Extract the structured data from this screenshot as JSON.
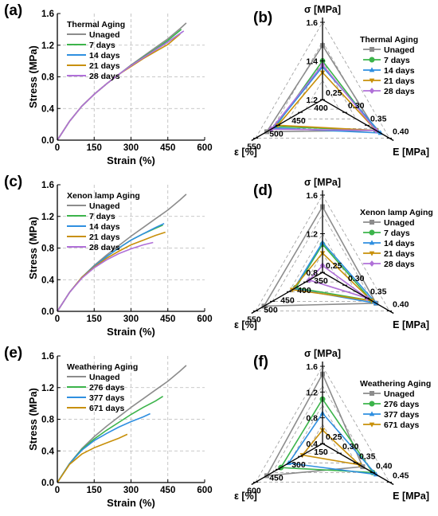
{
  "colors": {
    "Unaged": "#8c8c8c",
    "7 days": "#3cb44b",
    "14 days": "#2f8fe0",
    "21 days": "#c8900a",
    "28 days": "#b070d8",
    "276 days": "#3cb44b",
    "377 days": "#2f8fe0",
    "671 days": "#c8900a"
  },
  "chart_data": [
    {
      "panel": "(a)",
      "type": "line",
      "xlabel": "Strain (%)",
      "ylabel": "Stress (MPa)",
      "xlim": [
        0,
        600
      ],
      "ylim": [
        0,
        1.6
      ],
      "xticks": [
        0,
        150,
        300,
        450,
        600
      ],
      "yticks": [
        0.0,
        0.4,
        0.8,
        1.2,
        1.6
      ],
      "xtick_labels": [
        "0",
        "150",
        "300",
        "450",
        "600"
      ],
      "ytick_labels": [
        "0.0",
        "0.4",
        "0.8",
        "1.2",
        "1.6"
      ],
      "grid": true,
      "legend_title": "Thermal Aging",
      "legend_position": "top-left",
      "series": [
        {
          "name": "Unaged",
          "x": [
            0,
            50,
            100,
            150,
            200,
            250,
            300,
            350,
            400,
            450,
            500,
            525
          ],
          "y": [
            0,
            0.24,
            0.43,
            0.58,
            0.71,
            0.83,
            0.95,
            1.06,
            1.17,
            1.28,
            1.41,
            1.48
          ]
        },
        {
          "name": "7 days",
          "x": [
            0,
            50,
            100,
            150,
            200,
            250,
            300,
            350,
            400,
            450,
            505
          ],
          "y": [
            0,
            0.24,
            0.43,
            0.58,
            0.71,
            0.83,
            0.94,
            1.05,
            1.15,
            1.26,
            1.4
          ]
        },
        {
          "name": "14 days",
          "x": [
            0,
            50,
            100,
            150,
            200,
            250,
            300,
            350,
            400,
            450,
            510
          ],
          "y": [
            0,
            0.24,
            0.43,
            0.58,
            0.71,
            0.83,
            0.94,
            1.04,
            1.14,
            1.24,
            1.37
          ]
        },
        {
          "name": "21 days",
          "x": [
            0,
            50,
            100,
            150,
            200,
            250,
            300,
            350,
            400,
            450,
            500
          ],
          "y": [
            0,
            0.24,
            0.43,
            0.58,
            0.71,
            0.83,
            0.93,
            1.03,
            1.12,
            1.21,
            1.34
          ]
        },
        {
          "name": "28 days",
          "x": [
            0,
            50,
            100,
            150,
            200,
            250,
            300,
            350,
            400,
            450,
            515
          ],
          "y": [
            0,
            0.24,
            0.43,
            0.58,
            0.71,
            0.83,
            0.94,
            1.04,
            1.14,
            1.24,
            1.38
          ]
        }
      ]
    },
    {
      "panel": "(b)",
      "type": "radar",
      "axis_labels": {
        "top": "σ [MPa]",
        "right": "E [MPa]",
        "left": "ε [%]"
      },
      "axis_ranges": {
        "top": [
          1.2,
          1.6
        ],
        "right": [
          0.25,
          0.4
        ],
        "left": [
          400,
          550
        ]
      },
      "tick_labels": {
        "top": [
          "1.2",
          "1.4",
          "1.6"
        ],
        "right": [
          "0.25",
          "0.30",
          "0.35",
          "0.40"
        ],
        "left": [
          "400",
          "450",
          "500",
          "550"
        ]
      },
      "legend_title": "Thermal Aging",
      "legend_position": "top-right",
      "series": [
        {
          "name": "Unaged",
          "top": 1.48,
          "right": 0.37,
          "left": 525
        },
        {
          "name": "7 days",
          "top": 1.4,
          "right": 0.37,
          "left": 505
        },
        {
          "name": "14 days",
          "top": 1.37,
          "right": 0.38,
          "left": 510
        },
        {
          "name": "21 days",
          "top": 1.34,
          "right": 0.37,
          "left": 500
        },
        {
          "name": "28 days",
          "top": 1.38,
          "right": 0.37,
          "left": 515
        }
      ]
    },
    {
      "panel": "(c)",
      "type": "line",
      "xlabel": "Strain (%)",
      "ylabel": "Stress (MPa)",
      "xlim": [
        0,
        600
      ],
      "ylim": [
        0,
        1.6
      ],
      "xticks": [
        0,
        150,
        300,
        450,
        600
      ],
      "yticks": [
        0.0,
        0.4,
        0.8,
        1.2,
        1.6
      ],
      "xtick_labels": [
        "0",
        "150",
        "300",
        "450",
        "600"
      ],
      "ytick_labels": [
        "0.0",
        "0.4",
        "0.8",
        "1.2",
        "1.6"
      ],
      "grid": true,
      "legend_title": "Xenon lamp Aging",
      "legend_position": "top-left",
      "series": [
        {
          "name": "Unaged",
          "x": [
            0,
            50,
            100,
            150,
            200,
            250,
            300,
            350,
            400,
            450,
            500,
            525
          ],
          "y": [
            0,
            0.24,
            0.43,
            0.58,
            0.71,
            0.83,
            0.95,
            1.06,
            1.17,
            1.28,
            1.41,
            1.48
          ]
        },
        {
          "name": "7 days",
          "x": [
            0,
            50,
            100,
            150,
            200,
            250,
            300,
            350,
            400,
            430
          ],
          "y": [
            0,
            0.24,
            0.43,
            0.57,
            0.69,
            0.8,
            0.9,
            0.98,
            1.05,
            1.09
          ]
        },
        {
          "name": "14 days",
          "x": [
            0,
            50,
            100,
            150,
            200,
            250,
            300,
            350,
            400,
            435
          ],
          "y": [
            0,
            0.24,
            0.43,
            0.57,
            0.69,
            0.8,
            0.9,
            0.98,
            1.06,
            1.11
          ]
        },
        {
          "name": "21 days",
          "x": [
            0,
            50,
            100,
            150,
            200,
            250,
            300,
            350,
            400,
            440
          ],
          "y": [
            0,
            0.24,
            0.43,
            0.56,
            0.67,
            0.76,
            0.84,
            0.9,
            0.96,
            1.0
          ]
        },
        {
          "name": "28 days",
          "x": [
            0,
            50,
            100,
            150,
            200,
            250,
            300,
            350,
            390
          ],
          "y": [
            0,
            0.24,
            0.42,
            0.55,
            0.65,
            0.73,
            0.79,
            0.84,
            0.87
          ]
        }
      ]
    },
    {
      "panel": "(d)",
      "type": "radar",
      "axis_labels": {
        "top": "σ [MPa]",
        "right": "E [MPa]",
        "left": "ε [%]"
      },
      "axis_ranges": {
        "top": [
          0.8,
          1.6
        ],
        "right": [
          0.25,
          0.4
        ],
        "left": [
          350,
          550
        ]
      },
      "tick_labels": {
        "top": [
          "0.8",
          "1.2",
          "1.6"
        ],
        "right": [
          "0.25",
          "0.30",
          "0.35",
          "0.40"
        ],
        "left": [
          "350",
          "400",
          "450",
          "500",
          "550"
        ]
      },
      "legend_title": "Xenon lamp Aging",
      "legend_position": "top-right",
      "series": [
        {
          "name": "Unaged",
          "top": 1.48,
          "right": 0.37,
          "left": 525
        },
        {
          "name": "7 days",
          "top": 1.09,
          "right": 0.36,
          "left": 430
        },
        {
          "name": "14 days",
          "top": 1.11,
          "right": 0.37,
          "left": 435
        },
        {
          "name": "21 days",
          "top": 1.0,
          "right": 0.36,
          "left": 440
        },
        {
          "name": "28 days",
          "top": 0.87,
          "right": 0.35,
          "left": 390
        }
      ]
    },
    {
      "panel": "(e)",
      "type": "line",
      "xlabel": "Strain (%)",
      "ylabel": "Stress (MPa)",
      "xlim": [
        0,
        600
      ],
      "ylim": [
        0,
        1.6
      ],
      "xticks": [
        0,
        150,
        300,
        450,
        600
      ],
      "yticks": [
        0.0,
        0.4,
        0.8,
        1.2,
        1.6
      ],
      "xtick_labels": [
        "0",
        "150",
        "300",
        "450",
        "600"
      ],
      "ytick_labels": [
        "0.0",
        "0.4",
        "0.8",
        "1.2",
        "1.6"
      ],
      "grid": true,
      "legend_title": "Weathering Aging",
      "legend_position": "top-left",
      "series": [
        {
          "name": "Unaged",
          "x": [
            0,
            50,
            100,
            150,
            200,
            250,
            300,
            350,
            400,
            450,
            500,
            525
          ],
          "y": [
            0,
            0.24,
            0.43,
            0.58,
            0.71,
            0.83,
            0.95,
            1.06,
            1.17,
            1.28,
            1.41,
            1.48
          ]
        },
        {
          "name": "276 days",
          "x": [
            0,
            50,
            100,
            150,
            200,
            250,
            300,
            350,
            400,
            430
          ],
          "y": [
            0,
            0.24,
            0.42,
            0.55,
            0.66,
            0.76,
            0.86,
            0.95,
            1.03,
            1.09
          ]
        },
        {
          "name": "377 days",
          "x": [
            0,
            50,
            100,
            150,
            200,
            250,
            300,
            350,
            378
          ],
          "y": [
            0,
            0.24,
            0.41,
            0.53,
            0.62,
            0.7,
            0.77,
            0.83,
            0.87
          ]
        },
        {
          "name": "671 days",
          "x": [
            0,
            50,
            100,
            150,
            200,
            250,
            285
          ],
          "y": [
            0,
            0.23,
            0.36,
            0.44,
            0.5,
            0.56,
            0.61
          ]
        }
      ]
    },
    {
      "panel": "(f)",
      "type": "radar",
      "axis_labels": {
        "top": "σ [MPa]",
        "right": "E [MPa]",
        "left": "ε [%]"
      },
      "axis_ranges": {
        "top": [
          0.4,
          1.6
        ],
        "right": [
          0.25,
          0.45
        ],
        "left": [
          150,
          600
        ]
      },
      "tick_labels": {
        "top": [
          "0.4",
          "0.8",
          "1.2",
          "1.6"
        ],
        "right": [
          "0.25",
          "0.30",
          "0.35",
          "0.40",
          "0.45"
        ],
        "left": [
          "150",
          "300",
          "450",
          "600"
        ]
      },
      "legend_title": "Weathering Aging",
      "legend_position": "top-right",
      "series": [
        {
          "name": "Unaged",
          "top": 1.48,
          "right": 0.37,
          "left": 525
        },
        {
          "name": "276 days",
          "top": 1.09,
          "right": 0.4,
          "left": 430
        },
        {
          "name": "377 days",
          "top": 0.87,
          "right": 0.41,
          "left": 378
        },
        {
          "name": "671 days",
          "top": 0.61,
          "right": 0.36,
          "left": 285
        }
      ]
    }
  ]
}
